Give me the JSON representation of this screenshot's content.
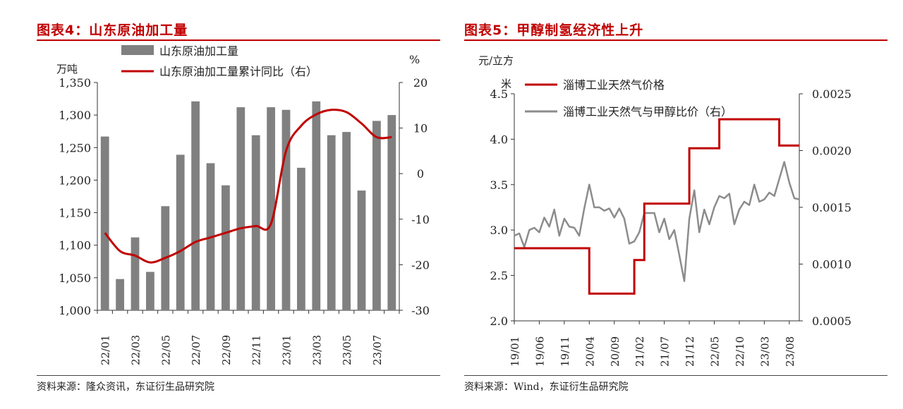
{
  "left": {
    "title": "图表4：山东原油加工量",
    "source": "资料来源：隆众资讯，东证衍生品研究院",
    "left_unit": "万吨",
    "right_unit": "%",
    "legend": [
      "山东原油加工量",
      "山东原油加工量累计同比（右）"
    ],
    "colors": {
      "bar": "#808080",
      "line": "#c00000"
    },
    "chart_data": {
      "type": "bar+line",
      "categories": [
        "22/01",
        "22/02",
        "22/03",
        "22/04",
        "22/05",
        "22/06",
        "22/07",
        "22/08",
        "22/09",
        "22/10",
        "22/11",
        "22/12",
        "23/01",
        "23/02",
        "23/03",
        "23/04",
        "23/05",
        "23/06",
        "23/07",
        "23/08"
      ],
      "xtick_labels": [
        "22/01",
        "22/03",
        "22/05",
        "22/07",
        "22/09",
        "22/11",
        "23/01",
        "23/03",
        "23/05",
        "23/07"
      ],
      "series": [
        {
          "name": "山东原油加工量",
          "axis": "left",
          "type": "bar",
          "values": [
            1267,
            1048,
            1112,
            1059,
            1160,
            1239,
            1321,
            1226,
            1192,
            1312,
            1269,
            1312,
            1308,
            1219,
            1321,
            1269,
            1274,
            1184,
            1291,
            1300
          ]
        },
        {
          "name": "山东原油加工量累计同比（右）",
          "axis": "right",
          "type": "line",
          "values": [
            -13,
            -17,
            -18,
            -19.5,
            -18.5,
            -17,
            -15,
            -14,
            -13,
            -12,
            -11.5,
            -11,
            5,
            10.5,
            13,
            14,
            13.5,
            11,
            8,
            8
          ]
        }
      ],
      "ylim_left": [
        1000,
        1350
      ],
      "yticks_left": [
        "1,000",
        "1,050",
        "1,100",
        "1,150",
        "1,200",
        "1,250",
        "1,300",
        "1,350"
      ],
      "ylim_right": [
        -30,
        20
      ],
      "yticks_right": [
        "-30",
        "-20",
        "-10",
        "0",
        "10",
        "20"
      ]
    }
  },
  "right": {
    "title": "图表5：甲醇制氢经济性上升",
    "source": "资料来源：Wind，东证衍生品研究院",
    "left_unit_line1": "元/立方",
    "left_unit_line2": "米",
    "legend": [
      "淄博工业天然气价格",
      "淄博工业天然气与甲醇比价（右）"
    ],
    "colors": {
      "price": "#c00000",
      "ratio": "#8c8c8c"
    },
    "chart_data": {
      "type": "line",
      "x_range": [
        "2019-01",
        "2023-10"
      ],
      "xtick_labels": [
        "19/01",
        "19/06",
        "19/11",
        "20/04",
        "20/09",
        "21/02",
        "21/07",
        "21/12",
        "22/05",
        "22/10",
        "23/03",
        "23/08"
      ],
      "ylim_left": [
        2.0,
        4.5
      ],
      "yticks_left": [
        "2.0",
        "2.5",
        "3.0",
        "3.5",
        "4.0",
        "4.5"
      ],
      "ylim_right": [
        0.0005,
        0.0025
      ],
      "yticks_right": [
        "0.0005",
        "0.0010",
        "0.0015",
        "0.0020",
        "0.0025"
      ],
      "series": [
        {
          "name": "淄博工业天然气价格",
          "axis": "left",
          "step": true,
          "points": [
            [
              "2019-01",
              2.8
            ],
            [
              "2020-04",
              2.8
            ],
            [
              "2020-04",
              2.3
            ],
            [
              "2021-01",
              2.3
            ],
            [
              "2021-01",
              2.67
            ],
            [
              "2021-03",
              2.67
            ],
            [
              "2021-03",
              3.29
            ],
            [
              "2021-12",
              3.29
            ],
            [
              "2021-12",
              3.9
            ],
            [
              "2022-06",
              3.9
            ],
            [
              "2022-06",
              4.22
            ],
            [
              "2023-06",
              4.22
            ],
            [
              "2023-06",
              3.93
            ],
            [
              "2023-10",
              3.93
            ]
          ]
        },
        {
          "name": "淄博工业天然气与甲醇比价（右）",
          "axis": "right",
          "points": [
            [
              "2019-01",
              0.00125
            ],
            [
              "2019-02",
              0.00127
            ],
            [
              "2019-03",
              0.00115
            ],
            [
              "2019-04",
              0.0013
            ],
            [
              "2019-05",
              0.00132
            ],
            [
              "2019-06",
              0.00128
            ],
            [
              "2019-07",
              0.00141
            ],
            [
              "2019-08",
              0.00133
            ],
            [
              "2019-09",
              0.00148
            ],
            [
              "2019-10",
              0.00125
            ],
            [
              "2019-11",
              0.0014
            ],
            [
              "2019-12",
              0.00133
            ],
            [
              "2020-01",
              0.00132
            ],
            [
              "2020-02",
              0.00125
            ],
            [
              "2020-03",
              0.00149
            ],
            [
              "2020-04",
              0.0017
            ],
            [
              "2020-05",
              0.0015
            ],
            [
              "2020-06",
              0.0015
            ],
            [
              "2020-07",
              0.00147
            ],
            [
              "2020-08",
              0.00149
            ],
            [
              "2020-09",
              0.00141
            ],
            [
              "2020-10",
              0.00149
            ],
            [
              "2020-11",
              0.0014
            ],
            [
              "2020-12",
              0.00118
            ],
            [
              "2021-01",
              0.0012
            ],
            [
              "2021-02",
              0.00128
            ],
            [
              "2021-03",
              0.00145
            ],
            [
              "2021-04",
              0.00145
            ],
            [
              "2021-05",
              0.00145
            ],
            [
              "2021-06",
              0.00128
            ],
            [
              "2021-07",
              0.0014
            ],
            [
              "2021-08",
              0.00122
            ],
            [
              "2021-09",
              0.0013
            ],
            [
              "2021-10",
              0.00108
            ],
            [
              "2021-11",
              0.00085
            ],
            [
              "2021-12",
              0.0014
            ],
            [
              "2022-01",
              0.00165
            ],
            [
              "2022-02",
              0.00128
            ],
            [
              "2022-03",
              0.00148
            ],
            [
              "2022-04",
              0.00135
            ],
            [
              "2022-05",
              0.0015
            ],
            [
              "2022-06",
              0.0016
            ],
            [
              "2022-07",
              0.00158
            ],
            [
              "2022-08",
              0.00162
            ],
            [
              "2022-09",
              0.00135
            ],
            [
              "2022-10",
              0.00148
            ],
            [
              "2022-11",
              0.00155
            ],
            [
              "2022-12",
              0.00152
            ],
            [
              "2023-01",
              0.0017
            ],
            [
              "2023-02",
              0.00155
            ],
            [
              "2023-03",
              0.00157
            ],
            [
              "2023-04",
              0.00163
            ],
            [
              "2023-05",
              0.0016
            ],
            [
              "2023-06",
              0.00175
            ],
            [
              "2023-07",
              0.0019
            ],
            [
              "2023-08",
              0.00172
            ],
            [
              "2023-09",
              0.00158
            ],
            [
              "2023-10",
              0.00157
            ]
          ]
        }
      ]
    }
  }
}
